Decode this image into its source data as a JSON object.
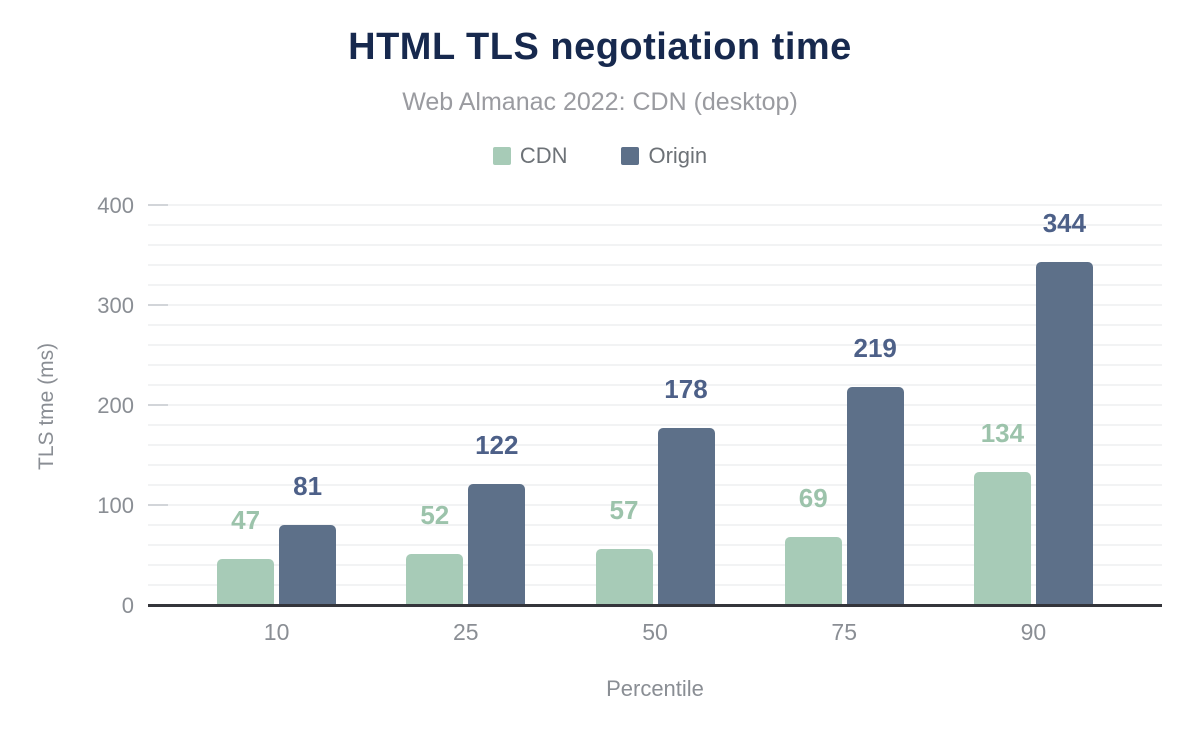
{
  "header": {
    "title": "HTML TLS negotiation time",
    "subtitle": "Web Almanac 2022: CDN (desktop)"
  },
  "colors": {
    "title_text": "#17294e",
    "subtitle_text": "#9a9ba0",
    "legend_text": "#6d7277",
    "axis_text": "#8a8e94",
    "gridline": "#f2f3f4",
    "major_tick": "#d2d5d9",
    "axis_line": "#34353b",
    "cdn_bar": "#a7cbb7",
    "cdn_label": "#9cc3ab",
    "origin_bar": "#5d7089",
    "origin_label": "#4d6088"
  },
  "chart_data": {
    "type": "bar",
    "title": "HTML TLS negotiation time",
    "subtitle": "Web Almanac 2022: CDN (desktop)",
    "xlabel": "Percentile",
    "ylabel": "TLS tme (ms)",
    "categories": [
      "10",
      "25",
      "50",
      "75",
      "90"
    ],
    "series": [
      {
        "name": "CDN",
        "color": "#a7cbb7",
        "label_color": "#9cc3ab",
        "values": [
          47,
          52,
          57,
          69,
          134
        ]
      },
      {
        "name": "Origin",
        "color": "#5d7089",
        "label_color": "#4d6088",
        "values": [
          81,
          122,
          178,
          219,
          344
        ]
      }
    ],
    "ylim": [
      0,
      400
    ],
    "yticks": [
      0,
      100,
      200,
      300,
      400
    ],
    "minor_grid_step": 20,
    "grid": true,
    "legend_position": "top",
    "value_labels": true
  }
}
